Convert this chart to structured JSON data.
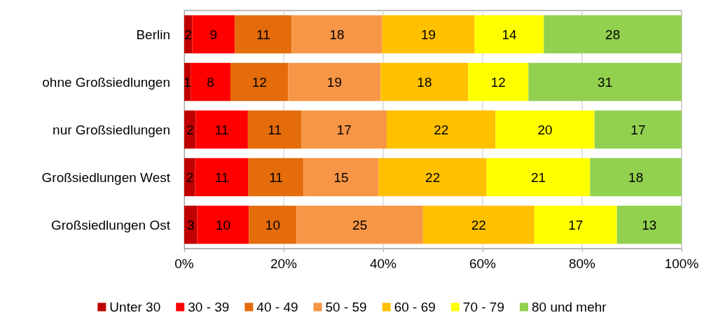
{
  "chart_data": {
    "type": "bar",
    "orientation": "horizontal",
    "stacked": true,
    "categories": [
      "Berlin",
      "ohne Großsiedlungen",
      "nur Großsiedlungen",
      "Großsiedlungen West",
      "Großsiedlungen Ost"
    ],
    "series": [
      {
        "name": "Unter 30",
        "color": "#c00000",
        "values": [
          1.6,
          1.3,
          2.3,
          2.2,
          2.6
        ],
        "value_labels": [
          "2",
          "1",
          "2",
          "2",
          "3"
        ]
      },
      {
        "name": "30 - 39",
        "color": "#ff0000",
        "values": [
          8.6,
          8.0,
          10.5,
          10.7,
          10.4
        ],
        "value_labels": [
          "9",
          "8",
          "11",
          "11",
          "10"
        ]
      },
      {
        "name": "40 - 49",
        "color": "#e46c0a",
        "values": [
          11.4,
          11.6,
          10.8,
          11.1,
          9.6
        ],
        "value_labels": [
          "11",
          "12",
          "11",
          "11",
          "10"
        ]
      },
      {
        "name": "50 - 59",
        "color": "#f79646",
        "values": [
          18.2,
          18.6,
          17.1,
          15.1,
          25.4
        ],
        "value_labels": [
          "18",
          "19",
          "17",
          "15",
          "25"
        ]
      },
      {
        "name": "60 - 69",
        "color": "#ffc000",
        "values": [
          18.6,
          17.6,
          21.9,
          21.7,
          22.4
        ],
        "value_labels": [
          "19",
          "18",
          "22",
          "22",
          "22"
        ]
      },
      {
        "name": "70 - 79",
        "color": "#ffff00",
        "values": [
          13.9,
          12.1,
          19.9,
          20.8,
          16.6
        ],
        "value_labels": [
          "14",
          "12",
          "20",
          "21",
          "17"
        ]
      },
      {
        "name": "80 und mehr",
        "color": "#92d050",
        "values": [
          27.7,
          30.8,
          17.5,
          18.4,
          13.0
        ],
        "value_labels": [
          "28",
          "31",
          "17",
          "18",
          "13"
        ]
      }
    ],
    "xlim": [
      0,
      100
    ],
    "xticks": [
      {
        "value": 0,
        "label": "0%"
      },
      {
        "value": 20,
        "label": "20%"
      },
      {
        "value": 40,
        "label": "40%"
      },
      {
        "value": 60,
        "label": "60%"
      },
      {
        "value": 80,
        "label": "80%"
      },
      {
        "value": 100,
        "label": "100%"
      }
    ],
    "grid": "x",
    "legend": "bottom"
  }
}
